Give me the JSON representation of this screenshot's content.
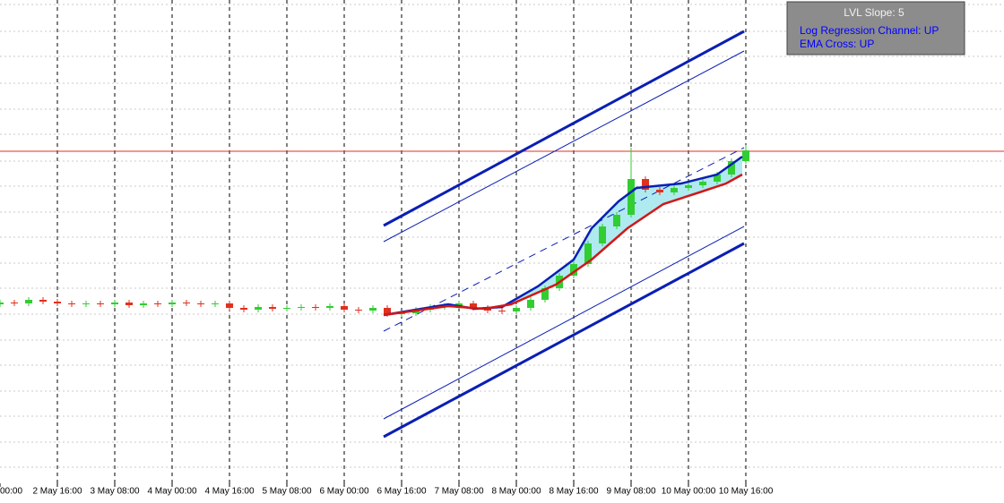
{
  "chart_data": {
    "type": "candlestick",
    "xlim": [
      0,
      280
    ],
    "ylim": [
      0,
      540
    ],
    "xticks": [
      {
        "value": 0,
        "label": "00:00"
      },
      {
        "value": 16,
        "label": "2 May 16:00"
      },
      {
        "value": 32,
        "label": "3 May 08:00"
      },
      {
        "value": 48,
        "label": "4 May 00:00"
      },
      {
        "value": 64,
        "label": "4 May 16:00"
      },
      {
        "value": 80,
        "label": "5 May 08:00"
      },
      {
        "value": 96,
        "label": "6 May 00:00"
      },
      {
        "value": 112,
        "label": "6 May 16:00"
      },
      {
        "value": 128,
        "label": "7 May 08:00"
      },
      {
        "value": 144,
        "label": "8 May 00:00"
      },
      {
        "value": 160,
        "label": "8 May 16:00"
      },
      {
        "value": 176,
        "label": "9 May 08:00"
      },
      {
        "value": 192,
        "label": "10 May 00:00"
      },
      {
        "value": 208,
        "label": "10 May 16:00"
      }
    ],
    "ygrid": [
      535,
      505,
      477,
      447,
      418,
      390,
      360,
      332,
      303,
      275,
      246,
      218,
      189,
      160,
      132,
      103,
      75,
      46,
      18
    ],
    "up_color": "#32cd32",
    "down_color": "#e0301e",
    "x": [
      0,
      4,
      8,
      12,
      16,
      20,
      24,
      28,
      32,
      36,
      40,
      44,
      48,
      52,
      56,
      60,
      64,
      68,
      72,
      76,
      80,
      84,
      88,
      92,
      96,
      100,
      104,
      108,
      112,
      116,
      120,
      124,
      128,
      132,
      136,
      140,
      144,
      148,
      152,
      156,
      160,
      164,
      168,
      172,
      176,
      180,
      184,
      188,
      192,
      196,
      200,
      204,
      208
    ],
    "open": [
      200,
      202,
      201,
      205,
      203,
      201,
      200,
      201,
      200,
      202,
      199,
      201,
      200,
      202,
      201,
      200,
      201,
      196,
      194,
      197,
      195,
      196,
      197,
      196,
      198,
      194,
      193,
      196,
      189,
      190,
      194,
      197,
      198,
      201,
      196,
      193,
      192,
      196,
      205,
      218,
      232,
      245,
      268,
      287,
      300,
      340,
      328,
      325,
      330,
      333,
      337,
      345,
      360
    ],
    "high": [
      205,
      205,
      208,
      208,
      206,
      204,
      204,
      204,
      205,
      205,
      204,
      204,
      205,
      205,
      204,
      204,
      204,
      199,
      200,
      200,
      199,
      200,
      200,
      201,
      201,
      197,
      199,
      199,
      193,
      197,
      200,
      201,
      204,
      204,
      199,
      196,
      199,
      208,
      221,
      235,
      248,
      271,
      290,
      303,
      375,
      343,
      331,
      333,
      336,
      340,
      348,
      363,
      378
    ],
    "low": [
      197,
      198,
      198,
      200,
      198,
      197,
      197,
      197,
      197,
      196,
      196,
      197,
      197,
      198,
      197,
      197,
      193,
      191,
      191,
      192,
      192,
      193,
      193,
      193,
      191,
      190,
      190,
      186,
      186,
      187,
      191,
      194,
      195,
      193,
      190,
      189,
      189,
      193,
      202,
      215,
      229,
      242,
      265,
      284,
      297,
      325,
      322,
      322,
      327,
      330,
      334,
      342,
      357
    ],
    "close": [
      202,
      201,
      205,
      203,
      201,
      200,
      201,
      200,
      202,
      199,
      201,
      200,
      202,
      201,
      200,
      201,
      196,
      194,
      197,
      195,
      196,
      197,
      196,
      198,
      194,
      193,
      196,
      189,
      190,
      194,
      197,
      198,
      201,
      196,
      193,
      192,
      196,
      205,
      218,
      232,
      245,
      268,
      287,
      300,
      340,
      328,
      325,
      330,
      333,
      337,
      345,
      360,
      372
    ],
    "ema": [
      {
        "color": "#0a1fb4",
        "x": [
          107,
          117.5,
          125,
          132.5,
          140,
          150,
          160,
          165,
          172.5,
          177.5,
          190,
          200,
          207
        ],
        "values": [
          188,
          195,
          200,
          195,
          197,
          220,
          250,
          285,
          315,
          330,
          335,
          345,
          365
        ]
      },
      {
        "color": "#d01818",
        "x": [
          107,
          125,
          135,
          142.5,
          155,
          165,
          175,
          185,
          195,
          202.5,
          207
        ],
        "values": [
          188,
          198,
          195,
          200,
          222,
          250,
          285,
          312,
          325,
          335,
          345
        ]
      }
    ],
    "cloud_color": "#aeeaf0",
    "channel": [
      {
        "x": [
          107,
          207.5
        ],
        "values": [
          288,
          505
        ],
        "width": 3,
        "dash": false
      },
      {
        "x": [
          107,
          207.5
        ],
        "values": [
          270,
          483
        ],
        "width": 1,
        "dash": false
      },
      {
        "x": [
          107,
          207.5
        ],
        "values": [
          170,
          375
        ],
        "width": 1,
        "dash": true
      },
      {
        "x": [
          107,
          207.5
        ],
        "values": [
          72,
          287
        ],
        "width": 1,
        "dash": false
      },
      {
        "x": [
          107,
          207.5
        ],
        "values": [
          52,
          268
        ],
        "width": 3,
        "dash": false
      }
    ],
    "channel_color": "#0a1fb4",
    "hline": {
      "value": 371,
      "color": "#e0301e"
    }
  },
  "info_panel": {
    "title": "LVL Slope: 5",
    "lines": [
      "Log Regression Channel: UP",
      "EMA Cross: UP"
    ]
  }
}
